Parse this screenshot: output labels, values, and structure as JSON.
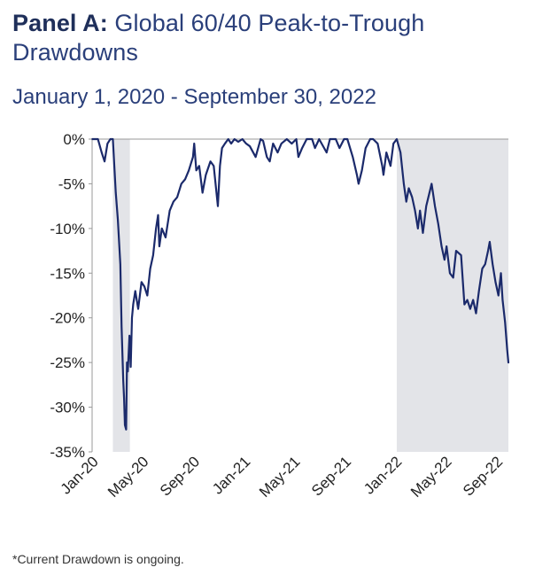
{
  "header": {
    "panel_label": "Panel A:",
    "title_rest": " Global 60/40 Peak-to-Trough Drawdowns",
    "subtitle": "January 1, 2020 - September 30, 2022"
  },
  "footnote": "*Current Drawdown is ongoing.",
  "colors": {
    "line": "#1b2a6b",
    "shade": "#e3e4e8",
    "axis": "#999999",
    "title": "#2a3f7a"
  },
  "chart_data": {
    "type": "line",
    "title": "Panel A: Global 60/40 Peak-to-Trough Drawdowns",
    "subtitle": "January 1, 2020 - September 30, 2022",
    "xlabel": "",
    "ylabel": "",
    "ylim": [
      -35,
      0
    ],
    "y_ticks": [
      0,
      -5,
      -10,
      -15,
      -20,
      -25,
      -30,
      -35
    ],
    "y_tick_labels": [
      "0%",
      "-5%",
      "-10%",
      "-15%",
      "-20%",
      "-25%",
      "-30%",
      "-35%"
    ],
    "x_range": [
      "2020-01-01",
      "2022-09-30"
    ],
    "x_ticks": [
      "2020-01-01",
      "2020-05-01",
      "2020-09-01",
      "2021-01-01",
      "2021-05-01",
      "2021-09-01",
      "2022-01-01",
      "2022-05-01",
      "2022-09-01"
    ],
    "x_tick_labels": [
      "Jan-20",
      "May-20",
      "Sep-20",
      "Jan-21",
      "May-21",
      "Sep-21",
      "Jan-22",
      "May-22",
      "Sep-22"
    ],
    "grid": false,
    "shaded_periods": [
      {
        "start": "2020-02-20",
        "end": "2020-04-01"
      },
      {
        "start": "2022-01-04",
        "end": "2022-09-30"
      }
    ],
    "series": [
      {
        "name": "",
        "points": [
          [
            "2020-01-01",
            0
          ],
          [
            "2020-01-15",
            0
          ],
          [
            "2020-01-24",
            -1.5
          ],
          [
            "2020-01-31",
            -2.5
          ],
          [
            "2020-02-07",
            -0.5
          ],
          [
            "2020-02-14",
            0
          ],
          [
            "2020-02-20",
            0
          ],
          [
            "2020-02-27",
            -6
          ],
          [
            "2020-03-03",
            -9
          ],
          [
            "2020-03-09",
            -14
          ],
          [
            "2020-03-12",
            -21
          ],
          [
            "2020-03-16",
            -27
          ],
          [
            "2020-03-18",
            -29
          ],
          [
            "2020-03-20",
            -32
          ],
          [
            "2020-03-23",
            -32.5
          ],
          [
            "2020-03-25",
            -25
          ],
          [
            "2020-03-27",
            -26
          ],
          [
            "2020-03-31",
            -22
          ],
          [
            "2020-04-03",
            -25.5
          ],
          [
            "2020-04-06",
            -20
          ],
          [
            "2020-04-09",
            -18.5
          ],
          [
            "2020-04-14",
            -17
          ],
          [
            "2020-04-21",
            -19
          ],
          [
            "2020-04-29",
            -16
          ],
          [
            "2020-05-06",
            -16.5
          ],
          [
            "2020-05-13",
            -17.5
          ],
          [
            "2020-05-20",
            -14.5
          ],
          [
            "2020-05-27",
            -13
          ],
          [
            "2020-06-03",
            -10
          ],
          [
            "2020-06-08",
            -8.5
          ],
          [
            "2020-06-11",
            -12
          ],
          [
            "2020-06-17",
            -10
          ],
          [
            "2020-06-26",
            -11
          ],
          [
            "2020-07-06",
            -8
          ],
          [
            "2020-07-15",
            -7
          ],
          [
            "2020-07-24",
            -6.5
          ],
          [
            "2020-08-03",
            -5
          ],
          [
            "2020-08-12",
            -4.5
          ],
          [
            "2020-08-21",
            -3.5
          ],
          [
            "2020-08-31",
            -2
          ],
          [
            "2020-09-03",
            -0.5
          ],
          [
            "2020-09-08",
            -3.5
          ],
          [
            "2020-09-15",
            -3
          ],
          [
            "2020-09-23",
            -6
          ],
          [
            "2020-10-01",
            -4
          ],
          [
            "2020-10-12",
            -2.5
          ],
          [
            "2020-10-20",
            -3
          ],
          [
            "2020-10-30",
            -7.5
          ],
          [
            "2020-11-04",
            -3
          ],
          [
            "2020-11-09",
            -1
          ],
          [
            "2020-11-16",
            -0.5
          ],
          [
            "2020-11-24",
            0
          ],
          [
            "2020-12-01",
            -0.5
          ],
          [
            "2020-12-09",
            0
          ],
          [
            "2020-12-18",
            -0.3
          ],
          [
            "2020-12-28",
            0
          ],
          [
            "2021-01-06",
            -0.5
          ],
          [
            "2021-01-15",
            -0.8
          ],
          [
            "2021-01-29",
            -2
          ],
          [
            "2021-02-10",
            0
          ],
          [
            "2021-02-16",
            -0.2
          ],
          [
            "2021-02-25",
            -2
          ],
          [
            "2021-03-04",
            -2.5
          ],
          [
            "2021-03-12",
            -0.5
          ],
          [
            "2021-03-23",
            -1.5
          ],
          [
            "2021-04-01",
            -0.5
          ],
          [
            "2021-04-14",
            0
          ],
          [
            "2021-04-26",
            -0.5
          ],
          [
            "2021-05-07",
            0
          ],
          [
            "2021-05-12",
            -2
          ],
          [
            "2021-05-21",
            -1
          ],
          [
            "2021-06-01",
            0
          ],
          [
            "2021-06-14",
            0
          ],
          [
            "2021-06-21",
            -1
          ],
          [
            "2021-07-01",
            0
          ],
          [
            "2021-07-19",
            -1.5
          ],
          [
            "2021-07-27",
            0
          ],
          [
            "2021-08-10",
            0
          ],
          [
            "2021-08-19",
            -1
          ],
          [
            "2021-08-30",
            0
          ],
          [
            "2021-09-07",
            0
          ],
          [
            "2021-09-20",
            -2
          ],
          [
            "2021-09-30",
            -4
          ],
          [
            "2021-10-04",
            -5
          ],
          [
            "2021-10-12",
            -3.5
          ],
          [
            "2021-10-21",
            -1
          ],
          [
            "2021-11-01",
            0
          ],
          [
            "2021-11-08",
            0
          ],
          [
            "2021-11-19",
            -0.5
          ],
          [
            "2021-11-30",
            -3
          ],
          [
            "2021-12-03",
            -4
          ],
          [
            "2021-12-10",
            -1.5
          ],
          [
            "2021-12-20",
            -3
          ],
          [
            "2021-12-27",
            -0.5
          ],
          [
            "2022-01-04",
            0
          ],
          [
            "2022-01-13",
            -1.5
          ],
          [
            "2022-01-21",
            -5
          ],
          [
            "2022-01-27",
            -7
          ],
          [
            "2022-02-02",
            -5.5
          ],
          [
            "2022-02-10",
            -6.5
          ],
          [
            "2022-02-17",
            -8
          ],
          [
            "2022-02-24",
            -10
          ],
          [
            "2022-03-01",
            -8
          ],
          [
            "2022-03-08",
            -10.5
          ],
          [
            "2022-03-16",
            -7.5
          ],
          [
            "2022-03-29",
            -5
          ],
          [
            "2022-04-06",
            -7.5
          ],
          [
            "2022-04-14",
            -9.5
          ],
          [
            "2022-04-22",
            -12
          ],
          [
            "2022-04-29",
            -13.5
          ],
          [
            "2022-05-04",
            -12
          ],
          [
            "2022-05-12",
            -15
          ],
          [
            "2022-05-20",
            -15.5
          ],
          [
            "2022-05-27",
            -12.5
          ],
          [
            "2022-06-08",
            -13
          ],
          [
            "2022-06-16",
            -18.5
          ],
          [
            "2022-06-23",
            -18
          ],
          [
            "2022-06-30",
            -19
          ],
          [
            "2022-07-07",
            -18
          ],
          [
            "2022-07-14",
            -19.5
          ],
          [
            "2022-07-21",
            -17
          ],
          [
            "2022-07-29",
            -14.5
          ],
          [
            "2022-08-05",
            -14
          ],
          [
            "2022-08-12",
            -12.5
          ],
          [
            "2022-08-16",
            -11.5
          ],
          [
            "2022-08-23",
            -14
          ],
          [
            "2022-08-30",
            -16
          ],
          [
            "2022-09-06",
            -17.5
          ],
          [
            "2022-09-12",
            -15
          ],
          [
            "2022-09-16",
            -18
          ],
          [
            "2022-09-22",
            -20.5
          ],
          [
            "2022-09-27",
            -23.5
          ],
          [
            "2022-09-30",
            -25
          ]
        ]
      }
    ]
  }
}
